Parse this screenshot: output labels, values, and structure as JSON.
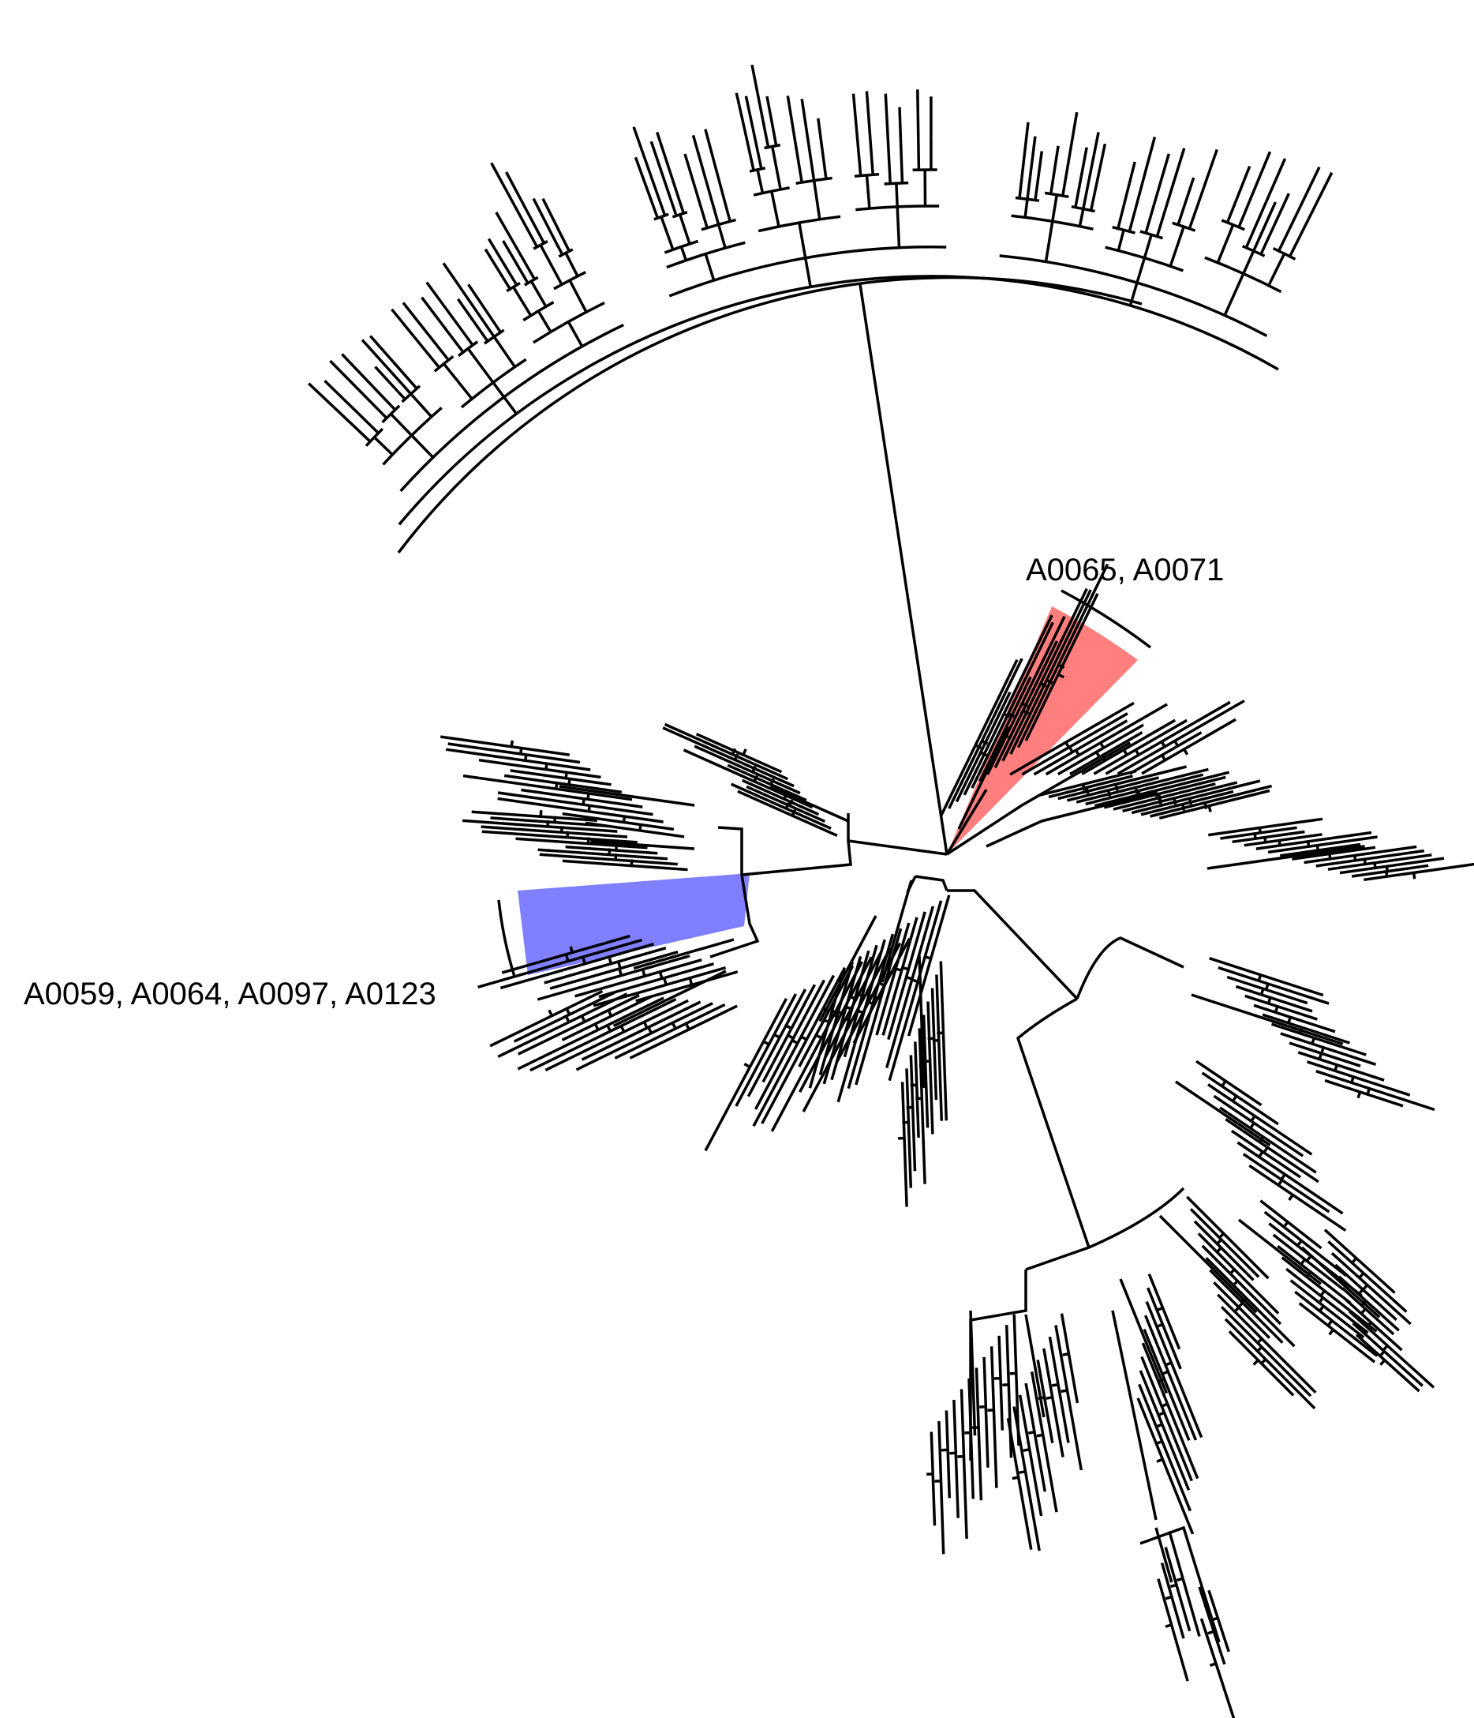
{
  "tree": {
    "layout": "circular-fan",
    "branch_color": "#000000",
    "background": "#ffffff"
  },
  "highlights": [
    {
      "id": "red-clade",
      "label": "A0065, A0071",
      "color": "#ff0000",
      "opacity": 0.5
    },
    {
      "id": "blue-clade",
      "label": "A0059, A0064, A0097, A0123",
      "color": "#0000ff",
      "opacity": 0.5
    }
  ]
}
